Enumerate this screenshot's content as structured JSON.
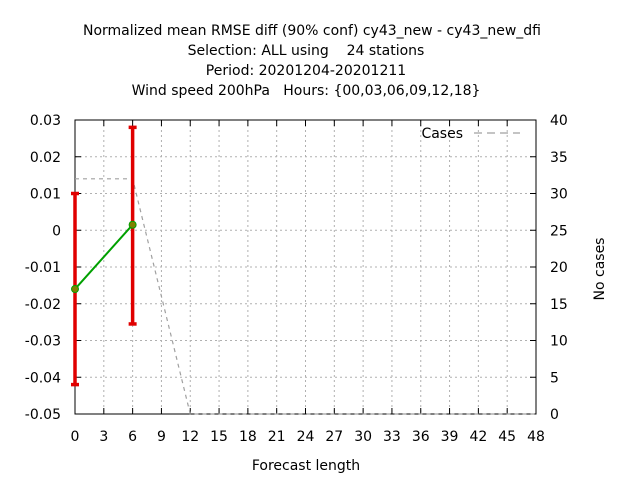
{
  "chart_data": {
    "type": "line",
    "title_lines": [
      "Normalized mean RMSE diff (90% conf) cy43_new - cy43_new_dfi",
      "Selection: ALL using    24 stations",
      "Period: 20201204-20201211",
      "Wind speed 200hPa   Hours: {00,03,06,09,12,18}"
    ],
    "xlabel": "Forecast length",
    "ylabel": "",
    "y2label": "No cases",
    "xlim": [
      0,
      48
    ],
    "ylim": [
      -0.05,
      0.03
    ],
    "y2lim": [
      0,
      40
    ],
    "xticks": [
      0,
      3,
      6,
      9,
      12,
      15,
      18,
      21,
      24,
      27,
      30,
      33,
      36,
      39,
      42,
      45,
      48
    ],
    "yticks": [
      "0.03",
      "0.02",
      "0.01",
      "0",
      "-0.01",
      "-0.02",
      "-0.03",
      "-0.04",
      "-0.05"
    ],
    "ytick_values": [
      0.03,
      0.02,
      0.01,
      0,
      -0.01,
      -0.02,
      -0.03,
      -0.04,
      -0.05
    ],
    "y2ticks": [
      0,
      5,
      10,
      15,
      20,
      25,
      30,
      35,
      40
    ],
    "grid": true,
    "legend_position": "top-right",
    "series": [
      {
        "name": "",
        "axis": "left",
        "style": "line-points",
        "color": "#00a000",
        "point_color": "#808000",
        "x": [
          0,
          6
        ],
        "y": [
          -0.016,
          0.0015
        ]
      },
      {
        "name": "Cases",
        "axis": "right",
        "style": "dashed",
        "color": "#a0a0a0",
        "x": [
          0,
          6,
          12,
          48
        ],
        "y": [
          32,
          32,
          0,
          0
        ]
      }
    ],
    "error_bars": {
      "color": "#e00000",
      "x": [
        0,
        6
      ],
      "low": [
        -0.042,
        -0.0255
      ],
      "high": [
        0.01,
        0.028
      ]
    }
  }
}
